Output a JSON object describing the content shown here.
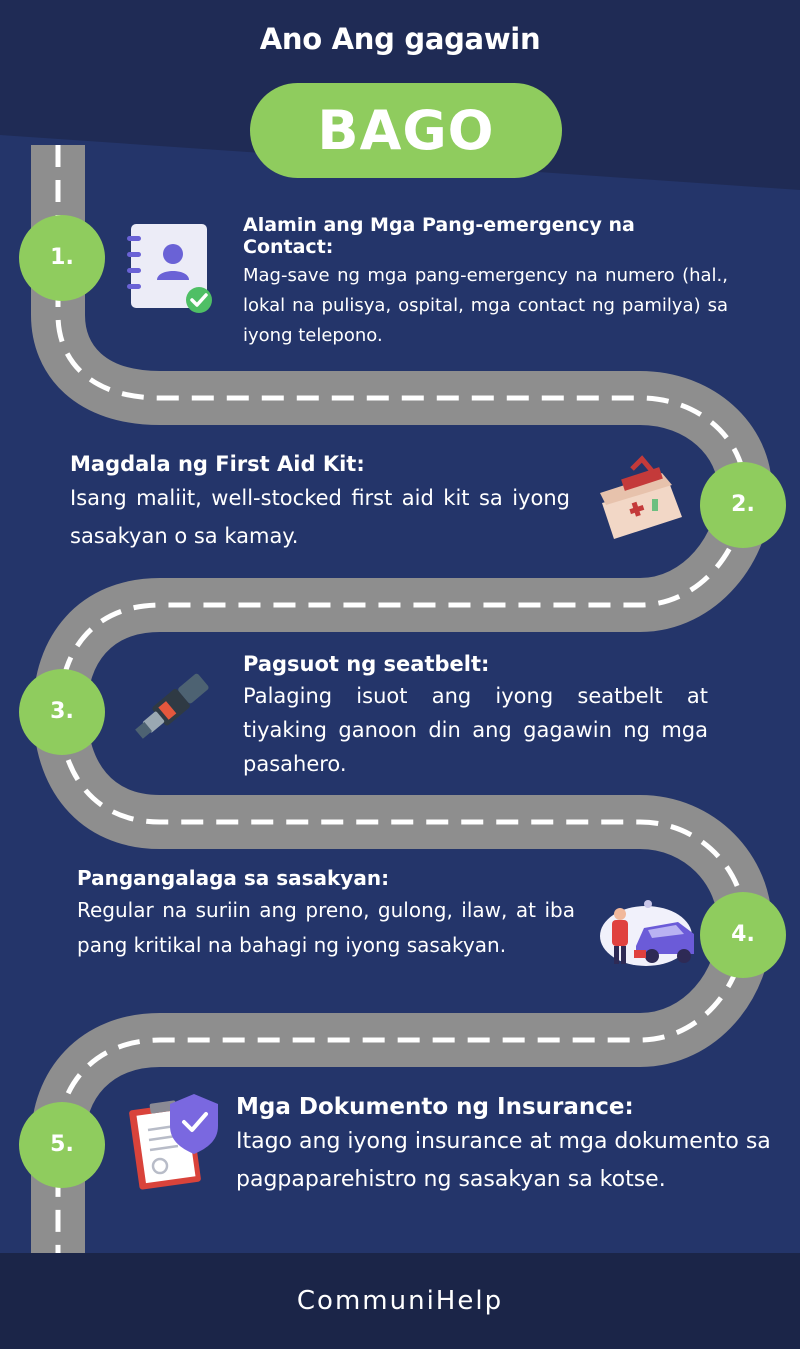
{
  "header": {
    "title": "Ano Ang gagawin",
    "badge": "BAGO"
  },
  "steps": [
    {
      "number": "1.",
      "heading": "Alamin ang Mga Pang-emergency na Contact:",
      "body": "Mag-save ng mga pang-emergency na numero (hal., lokal na pulisya, ospital, mga contact ng pamilya) sa iyong telepono.",
      "icon": "contact-book-icon"
    },
    {
      "number": "2.",
      "heading": "Magdala ng First Aid Kit:",
      "body": "Isang maliit, well-stocked first aid kit sa iyong sasakyan o sa kamay.",
      "icon": "first-aid-kit-icon"
    },
    {
      "number": "3.",
      "heading": "Pagsuot ng seatbelt:",
      "body": "Palaging isuot ang iyong seatbelt at tiyaking ganoon din ang gagawin ng mga pasahero.",
      "icon": "seatbelt-icon"
    },
    {
      "number": "4.",
      "heading": "Pangangalaga sa sasakyan:",
      "body": "Regular na suriin ang preno, gulong, ilaw, at iba pang kritikal na bahagi ng iyong sasakyan.",
      "icon": "car-maintenance-icon"
    },
    {
      "number": "5.",
      "heading": "Mga Dokumento ng Insurance:",
      "body": "Itago ang iyong insurance at mga dokumento sa pagpaparehistro ng sasakyan sa kotse.",
      "icon": "insurance-document-icon"
    }
  ],
  "footer": {
    "brand": "CommuniHelp"
  },
  "colors": {
    "background": "#24356a",
    "header_band": "#1f2b55",
    "accent_green": "#8fcc5e",
    "road": "#8e8e8e",
    "footer": "#1b2548"
  }
}
